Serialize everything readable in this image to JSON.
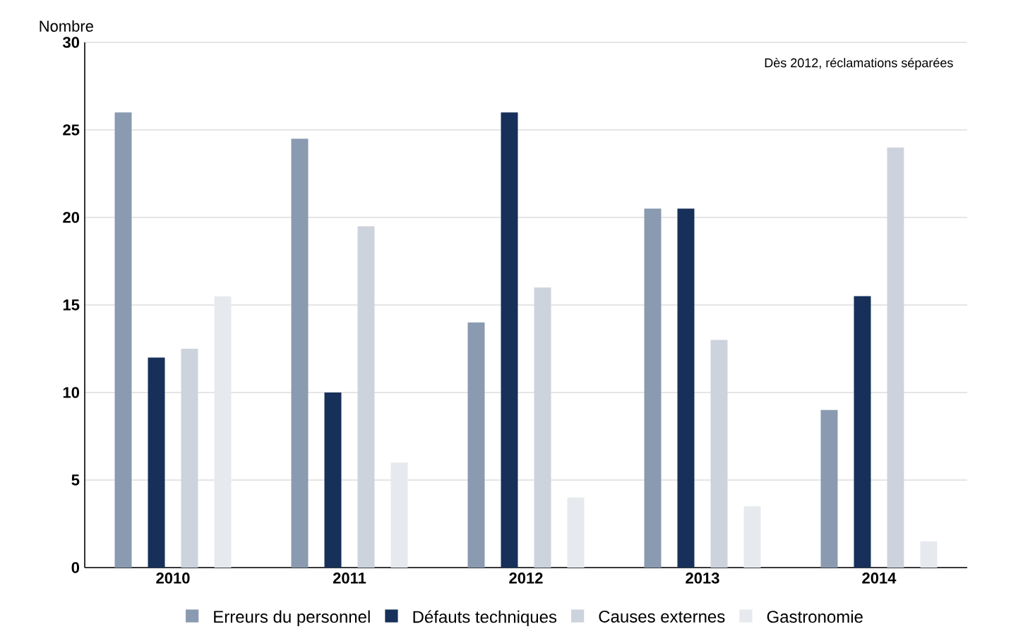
{
  "chart_data": {
    "type": "bar",
    "ylabel": "Nombre",
    "categories": [
      "2010",
      "2011",
      "2012",
      "2013",
      "2014"
    ],
    "series": [
      {
        "name": "Erreurs du personnel",
        "color": "#8a9ab0",
        "values": [
          26,
          24.5,
          14,
          20.5,
          9
        ]
      },
      {
        "name": "Défauts techniques",
        "color": "#17305a",
        "values": [
          12,
          10,
          26,
          20.5,
          15.5
        ]
      },
      {
        "name": "Causes externes",
        "color": "#cdd3dd",
        "values": [
          12.5,
          19.5,
          16,
          13,
          24
        ]
      },
      {
        "name": "Gastronomie",
        "color": "#e6e9ee",
        "values": [
          15.5,
          6,
          4,
          3.5,
          1.5
        ]
      }
    ],
    "annotations": [
      "Dès 2012, réclamations séparées"
    ],
    "ylim": [
      0,
      30
    ],
    "yticks": [
      0,
      5,
      10,
      15,
      20,
      25,
      30
    ],
    "grid": "y",
    "legend": "bottom"
  }
}
